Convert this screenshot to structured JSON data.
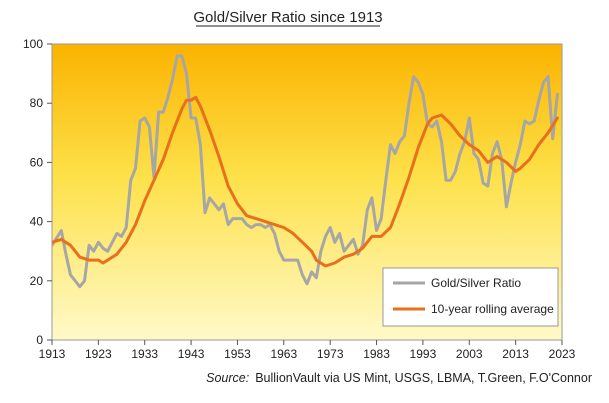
{
  "chart_data": {
    "type": "line",
    "title": "Gold/Silver Ratio since 1913",
    "xlabel": "",
    "ylabel": "",
    "xlim": [
      1913,
      2023
    ],
    "ylim": [
      0,
      100
    ],
    "x_ticks": [
      1913,
      1923,
      1933,
      1943,
      1953,
      1963,
      1973,
      1983,
      1993,
      2003,
      2013,
      2023
    ],
    "y_ticks": [
      0,
      20,
      40,
      60,
      80,
      100
    ],
    "grid": false,
    "legend_position": "lower-right",
    "series": [
      {
        "name": "Gold/Silver Ratio",
        "color": "#a6a6a6",
        "points": [
          [
            1913,
            32
          ],
          [
            1915,
            37
          ],
          [
            1916,
            29
          ],
          [
            1917,
            22
          ],
          [
            1918,
            20
          ],
          [
            1919,
            18
          ],
          [
            1920,
            20
          ],
          [
            1921,
            32
          ],
          [
            1922,
            30
          ],
          [
            1923,
            33
          ],
          [
            1924,
            31
          ],
          [
            1925,
            30
          ],
          [
            1926,
            33
          ],
          [
            1927,
            36
          ],
          [
            1928,
            35
          ],
          [
            1929,
            38
          ],
          [
            1930,
            54
          ],
          [
            1931,
            58
          ],
          [
            1932,
            74
          ],
          [
            1933,
            75
          ],
          [
            1934,
            72
          ],
          [
            1935,
            55
          ],
          [
            1936,
            77
          ],
          [
            1937,
            77
          ],
          [
            1938,
            82
          ],
          [
            1939,
            88
          ],
          [
            1940,
            96
          ],
          [
            1941,
            96
          ],
          [
            1942,
            90
          ],
          [
            1943,
            75
          ],
          [
            1944,
            75
          ],
          [
            1945,
            66
          ],
          [
            1946,
            43
          ],
          [
            1947,
            48
          ],
          [
            1948,
            46
          ],
          [
            1949,
            44
          ],
          [
            1950,
            46
          ],
          [
            1951,
            39
          ],
          [
            1952,
            41
          ],
          [
            1953,
            41
          ],
          [
            1954,
            41
          ],
          [
            1955,
            39
          ],
          [
            1956,
            38
          ],
          [
            1957,
            39
          ],
          [
            1958,
            39
          ],
          [
            1959,
            38
          ],
          [
            1960,
            39
          ],
          [
            1961,
            36
          ],
          [
            1962,
            30
          ],
          [
            1963,
            27
          ],
          [
            1964,
            27
          ],
          [
            1965,
            27
          ],
          [
            1966,
            27
          ],
          [
            1967,
            22
          ],
          [
            1968,
            19
          ],
          [
            1969,
            23
          ],
          [
            1970,
            21
          ],
          [
            1971,
            30
          ],
          [
            1972,
            35
          ],
          [
            1973,
            38
          ],
          [
            1974,
            33
          ],
          [
            1975,
            36
          ],
          [
            1976,
            30
          ],
          [
            1977,
            32
          ],
          [
            1978,
            34
          ],
          [
            1979,
            29
          ],
          [
            1980,
            32
          ],
          [
            1981,
            44
          ],
          [
            1982,
            48
          ],
          [
            1983,
            37
          ],
          [
            1984,
            41
          ],
          [
            1985,
            54
          ],
          [
            1986,
            66
          ],
          [
            1987,
            63
          ],
          [
            1988,
            67
          ],
          [
            1989,
            69
          ],
          [
            1990,
            80
          ],
          [
            1991,
            89
          ],
          [
            1992,
            87
          ],
          [
            1993,
            83
          ],
          [
            1994,
            73
          ],
          [
            1995,
            72
          ],
          [
            1996,
            74
          ],
          [
            1997,
            67
          ],
          [
            1998,
            54
          ],
          [
            1999,
            54
          ],
          [
            2000,
            57
          ],
          [
            2001,
            63
          ],
          [
            2002,
            67
          ],
          [
            2003,
            75
          ],
          [
            2004,
            63
          ],
          [
            2005,
            61
          ],
          [
            2006,
            53
          ],
          [
            2007,
            52
          ],
          [
            2008,
            63
          ],
          [
            2009,
            67
          ],
          [
            2010,
            61
          ],
          [
            2011,
            45
          ],
          [
            2012,
            53
          ],
          [
            2013,
            60
          ],
          [
            2014,
            66
          ],
          [
            2015,
            74
          ],
          [
            2016,
            73
          ],
          [
            2017,
            74
          ],
          [
            2018,
            81
          ],
          [
            2019,
            87
          ],
          [
            2020,
            89
          ],
          [
            2021,
            68
          ],
          [
            2022,
            83
          ]
        ]
      },
      {
        "name": "10-year rolling average",
        "color": "#e8701c",
        "points": [
          [
            1913,
            33
          ],
          [
            1915,
            34
          ],
          [
            1917,
            32
          ],
          [
            1918,
            30
          ],
          [
            1919,
            28
          ],
          [
            1921,
            27
          ],
          [
            1923,
            27
          ],
          [
            1924,
            26
          ],
          [
            1925,
            27
          ],
          [
            1927,
            29
          ],
          [
            1929,
            33
          ],
          [
            1931,
            39
          ],
          [
            1933,
            47
          ],
          [
            1935,
            54
          ],
          [
            1937,
            61
          ],
          [
            1939,
            70
          ],
          [
            1941,
            78
          ],
          [
            1942,
            81
          ],
          [
            1943,
            81
          ],
          [
            1944,
            82
          ],
          [
            1945,
            79
          ],
          [
            1946,
            75
          ],
          [
            1947,
            71
          ],
          [
            1949,
            62
          ],
          [
            1951,
            52
          ],
          [
            1953,
            46
          ],
          [
            1955,
            42
          ],
          [
            1957,
            41
          ],
          [
            1959,
            40
          ],
          [
            1961,
            39
          ],
          [
            1963,
            38
          ],
          [
            1965,
            36
          ],
          [
            1967,
            33
          ],
          [
            1969,
            30
          ],
          [
            1970,
            27
          ],
          [
            1972,
            25
          ],
          [
            1974,
            26
          ],
          [
            1976,
            28
          ],
          [
            1978,
            29
          ],
          [
            1980,
            31
          ],
          [
            1982,
            35
          ],
          [
            1984,
            35
          ],
          [
            1986,
            38
          ],
          [
            1988,
            46
          ],
          [
            1990,
            55
          ],
          [
            1992,
            65
          ],
          [
            1994,
            73
          ],
          [
            1995,
            75
          ],
          [
            1997,
            76
          ],
          [
            1999,
            73
          ],
          [
            2001,
            69
          ],
          [
            2003,
            66
          ],
          [
            2005,
            64
          ],
          [
            2007,
            60
          ],
          [
            2009,
            62
          ],
          [
            2011,
            60
          ],
          [
            2013,
            57
          ],
          [
            2014,
            58
          ],
          [
            2016,
            61
          ],
          [
            2018,
            66
          ],
          [
            2020,
            70
          ],
          [
            2022,
            75
          ]
        ]
      }
    ],
    "source_label": "Source:",
    "source_text": "BullionVault via US Mint, USGS, LBMA, T.Green, F.O'Connor"
  }
}
